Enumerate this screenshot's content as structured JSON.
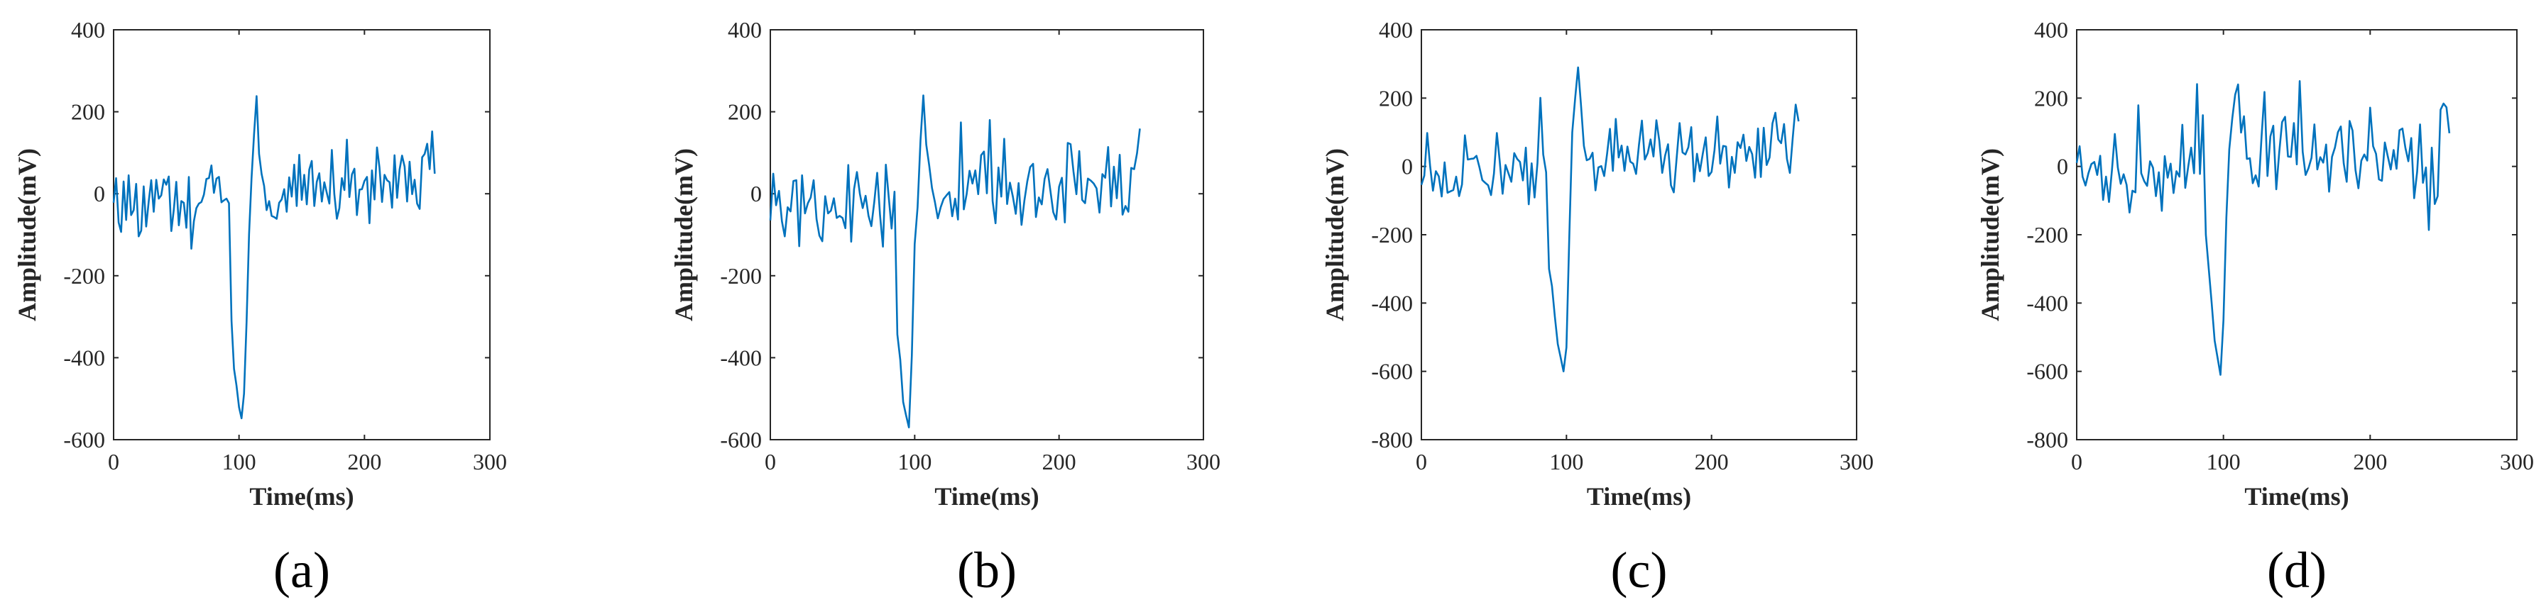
{
  "figure": {
    "line_color": "#0072BD",
    "axis_color": "#262626"
  },
  "chart_data": [
    {
      "type": "line",
      "panel": "(a)",
      "xlabel": "Time(ms)",
      "ylabel": "Amplitude(mV)",
      "xlim": [
        0,
        300
      ],
      "ylim": [
        -600,
        400
      ],
      "xticks": [
        0,
        100,
        200,
        300
      ],
      "yticks": [
        -600,
        -400,
        -200,
        0,
        200,
        400
      ],
      "series": [
        {
          "name": "signal",
          "x_start": 0,
          "x_step": 2,
          "values": [
            -22,
            38,
            -70,
            -93,
            30,
            -64,
            45,
            -52,
            -40,
            24,
            -104,
            -90,
            18,
            -80,
            -18,
            33,
            -44,
            34,
            -12,
            -4,
            35,
            22,
            42,
            -91,
            -39,
            29,
            -77,
            -18,
            -22,
            -83,
            41,
            -134,
            -67,
            -35,
            -24,
            -20,
            -2,
            36,
            38,
            69,
            2,
            37,
            41,
            -21,
            -16,
            -12,
            -23,
            -310,
            -427,
            -468,
            -521,
            -548,
            -488,
            -313,
            -99,
            38,
            147,
            238,
            97,
            48,
            19,
            -40,
            -18,
            -54,
            -57,
            -61,
            -22,
            -14,
            11,
            -44,
            40,
            -7,
            71,
            -30,
            95,
            -15,
            46,
            -26,
            59,
            80,
            -30,
            29,
            50,
            -19,
            28,
            2,
            -24,
            107,
            -1,
            -61,
            -35,
            38,
            9,
            132,
            -8,
            47,
            61,
            -52,
            10,
            11,
            31,
            41,
            -72,
            57,
            -14,
            113,
            64,
            -20,
            46,
            33,
            28,
            -34,
            94,
            -10,
            59,
            93,
            66,
            -19,
            78,
            -1,
            34,
            -24,
            -37,
            89,
            97,
            122,
            60,
            152,
            49
          ]
        }
      ]
    },
    {
      "type": "line",
      "panel": "(b)",
      "xlabel": "Time(ms)",
      "ylabel": "Amplitude(mV)",
      "xlim": [
        0,
        300
      ],
      "ylim": [
        -600,
        400
      ],
      "xticks": [
        0,
        100,
        200,
        300
      ],
      "yticks": [
        -600,
        -400,
        -200,
        0,
        200,
        400
      ],
      "series": [
        {
          "name": "signal",
          "x_start": 0,
          "x_step": 2,
          "values": [
            -65,
            49,
            -28,
            7,
            -67,
            -104,
            -33,
            -43,
            31,
            33,
            -128,
            45,
            -48,
            -23,
            -9,
            33,
            -62,
            -102,
            -116,
            -6,
            -48,
            -41,
            -11,
            -59,
            -54,
            -59,
            -84,
            70,
            -117,
            11,
            53,
            0,
            -35,
            -5,
            -54,
            -79,
            -20,
            51,
            -52,
            -129,
            71,
            -7,
            -85,
            5,
            -343,
            -405,
            -508,
            -540,
            -570,
            -395,
            -123,
            -33,
            130,
            240,
            120,
            70,
            14,
            -20,
            -60,
            -33,
            -13,
            -4,
            4,
            -55,
            -12,
            -63,
            174,
            -38,
            -1,
            56,
            25,
            57,
            -1,
            94,
            103,
            1,
            180,
            -18,
            -72,
            64,
            -7,
            134,
            -25,
            27,
            -7,
            -49,
            26,
            -76,
            -16,
            30,
            65,
            73,
            -57,
            -9,
            -26,
            36,
            60,
            7,
            -45,
            -63,
            17,
            39,
            -70,
            124,
            121,
            54,
            -1,
            104,
            -15,
            -23,
            37,
            32,
            25,
            13,
            -46,
            48,
            39,
            114,
            -31,
            66,
            -11,
            95,
            -51,
            -30,
            -44,
            63,
            60,
            99,
            159
          ]
        }
      ]
    },
    {
      "type": "line",
      "panel": "(c)",
      "xlabel": "Time(ms)",
      "ylabel": "Amplitude(mV)",
      "xlim": [
        0,
        300
      ],
      "ylim": [
        -800,
        400
      ],
      "xticks": [
        0,
        100,
        200,
        300
      ],
      "yticks": [
        -800,
        -600,
        -400,
        -200,
        0,
        200,
        400
      ],
      "series": [
        {
          "name": "signal",
          "x_start": 0,
          "x_step": 2,
          "values": [
            -54,
            -27,
            98,
            1,
            -71,
            -14,
            -29,
            -88,
            12,
            -77,
            -73,
            -69,
            -30,
            -87,
            -53,
            91,
            20,
            22,
            23,
            31,
            -2,
            -40,
            -48,
            -55,
            -84,
            -21,
            98,
            16,
            -80,
            4,
            -20,
            -45,
            39,
            22,
            13,
            -41,
            55,
            -111,
            9,
            -91,
            10,
            201,
            35,
            -17,
            -300,
            -350,
            -440,
            -520,
            -560,
            -600,
            -530,
            -200,
            100,
            200,
            290,
            180,
            60,
            18,
            22,
            40,
            -70,
            -3,
            1,
            -28,
            36,
            110,
            -13,
            139,
            26,
            61,
            -13,
            58,
            14,
            8,
            -22,
            64,
            134,
            20,
            39,
            79,
            29,
            135,
            75,
            -19,
            32,
            65,
            -55,
            -76,
            26,
            127,
            41,
            35,
            56,
            115,
            -44,
            37,
            -14,
            38,
            85,
            -28,
            -16,
            47,
            146,
            8,
            60,
            58,
            -62,
            28,
            -19,
            71,
            54,
            93,
            16,
            57,
            36,
            -33,
            111,
            -31,
            113,
            4,
            26,
            126,
            157,
            79,
            68,
            124,
            22,
            -19,
            85,
            181,
            132
          ]
        }
      ]
    },
    {
      "type": "line",
      "panel": "(d)",
      "xlabel": "Time(ms)",
      "ylabel": "Amplitude(mV)",
      "xlim": [
        0,
        300
      ],
      "ylim": [
        -800,
        400
      ],
      "xticks": [
        0,
        100,
        200,
        300
      ],
      "yticks": [
        -800,
        -600,
        -400,
        -200,
        0,
        200,
        400
      ],
      "series": [
        {
          "name": "signal",
          "x_start": 0,
          "x_step": 2,
          "values": [
            10,
            59,
            -30,
            -56,
            -20,
            7,
            13,
            -25,
            31,
            -98,
            -30,
            -104,
            -12,
            95,
            -3,
            -51,
            -23,
            -54,
            -135,
            -71,
            -76,
            179,
            -20,
            -43,
            -57,
            15,
            -4,
            -87,
            -17,
            -130,
            30,
            -33,
            8,
            -78,
            -14,
            -30,
            122,
            -63,
            0,
            55,
            -20,
            241,
            -22,
            150,
            -200,
            -300,
            -400,
            -510,
            -560,
            -610,
            -450,
            -150,
            50,
            140,
            210,
            240,
            99,
            147,
            22,
            24,
            -49,
            -26,
            -59,
            88,
            218,
            -28,
            88,
            119,
            -67,
            40,
            130,
            145,
            29,
            28,
            127,
            6,
            250,
            43,
            -25,
            -5,
            25,
            123,
            -9,
            27,
            11,
            64,
            -74,
            28,
            55,
            100,
            117,
            9,
            -45,
            133,
            105,
            -11,
            -64,
            17,
            35,
            17,
            172,
            59,
            37,
            -38,
            -42,
            70,
            30,
            -9,
            48,
            -7,
            106,
            111,
            55,
            15,
            83,
            -93,
            -16,
            123,
            -48,
            -3,
            -186,
            55,
            -110,
            -87,
            166,
            184,
            173,
            97
          ]
        }
      ]
    }
  ]
}
